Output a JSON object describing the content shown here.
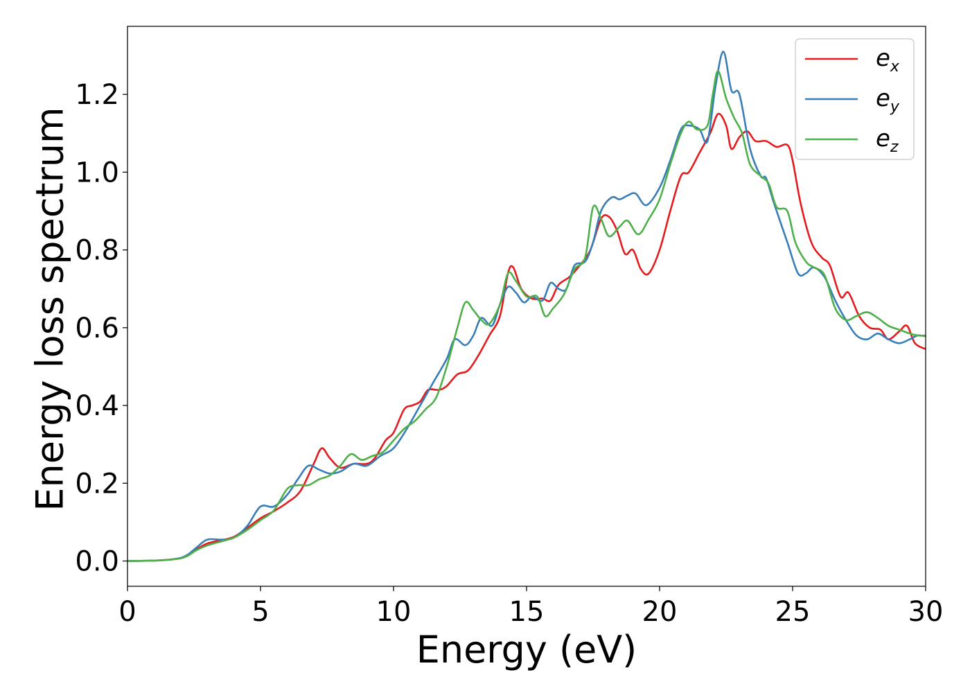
{
  "chart_data": {
    "type": "line",
    "xlabel": "Energy (eV)",
    "ylabel": "Energy loss spectrum",
    "xlim": [
      0,
      30
    ],
    "ylim": [
      -0.065,
      1.375
    ],
    "xticks": [
      0,
      5,
      10,
      15,
      20,
      25,
      30
    ],
    "yticks": [
      0.0,
      0.2,
      0.4,
      0.6,
      0.8,
      1.0,
      1.2
    ],
    "xtick_labels": [
      "0",
      "5",
      "10",
      "15",
      "20",
      "25",
      "30"
    ],
    "ytick_labels": [
      "0.0",
      "0.2",
      "0.4",
      "0.6",
      "0.8",
      "1.0",
      "1.2"
    ],
    "grid": false,
    "legend_position": "top-right",
    "series": [
      {
        "name": "e_x",
        "legend_base": "e",
        "legend_sub": "x",
        "color": "#e41a1c",
        "points": [
          [
            0,
            0.0
          ],
          [
            1,
            0.001
          ],
          [
            1.5,
            0.003
          ],
          [
            2,
            0.007
          ],
          [
            2.3,
            0.015
          ],
          [
            2.6,
            0.03
          ],
          [
            3,
            0.045
          ],
          [
            3.5,
            0.053
          ],
          [
            4,
            0.062
          ],
          [
            4.5,
            0.085
          ],
          [
            5,
            0.11
          ],
          [
            5.5,
            0.128
          ],
          [
            6,
            0.15
          ],
          [
            6.5,
            0.18
          ],
          [
            7,
            0.25
          ],
          [
            7.3,
            0.29
          ],
          [
            7.6,
            0.265
          ],
          [
            8,
            0.24
          ],
          [
            8.5,
            0.25
          ],
          [
            9,
            0.25
          ],
          [
            9.3,
            0.265
          ],
          [
            9.7,
            0.31
          ],
          [
            10,
            0.33
          ],
          [
            10.4,
            0.39
          ],
          [
            10.7,
            0.4
          ],
          [
            11,
            0.41
          ],
          [
            11.3,
            0.44
          ],
          [
            11.7,
            0.44
          ],
          [
            12,
            0.45
          ],
          [
            12.4,
            0.48
          ],
          [
            12.8,
            0.49
          ],
          [
            13.2,
            0.53
          ],
          [
            13.6,
            0.58
          ],
          [
            14,
            0.63
          ],
          [
            14.3,
            0.74
          ],
          [
            14.5,
            0.755
          ],
          [
            14.8,
            0.7
          ],
          [
            15.2,
            0.675
          ],
          [
            15.6,
            0.675
          ],
          [
            15.9,
            0.67
          ],
          [
            16.2,
            0.71
          ],
          [
            16.6,
            0.73
          ],
          [
            17,
            0.76
          ],
          [
            17.4,
            0.8
          ],
          [
            17.8,
            0.88
          ],
          [
            18.1,
            0.885
          ],
          [
            18.4,
            0.85
          ],
          [
            18.7,
            0.79
          ],
          [
            19,
            0.8
          ],
          [
            19.3,
            0.75
          ],
          [
            19.6,
            0.74
          ],
          [
            20,
            0.8
          ],
          [
            20.4,
            0.9
          ],
          [
            20.8,
            0.99
          ],
          [
            21.1,
            1.0
          ],
          [
            21.5,
            1.05
          ],
          [
            21.9,
            1.1
          ],
          [
            22.2,
            1.15
          ],
          [
            22.5,
            1.12
          ],
          [
            22.7,
            1.06
          ],
          [
            23,
            1.09
          ],
          [
            23.3,
            1.105
          ],
          [
            23.6,
            1.08
          ],
          [
            24,
            1.08
          ],
          [
            24.4,
            1.065
          ],
          [
            24.8,
            1.07
          ],
          [
            25,
            1.03
          ],
          [
            25.3,
            0.92
          ],
          [
            25.7,
            0.82
          ],
          [
            26.1,
            0.78
          ],
          [
            26.4,
            0.76
          ],
          [
            26.8,
            0.68
          ],
          [
            27.1,
            0.69
          ],
          [
            27.5,
            0.63
          ],
          [
            27.9,
            0.6
          ],
          [
            28.3,
            0.595
          ],
          [
            28.6,
            0.57
          ],
          [
            29,
            0.59
          ],
          [
            29.3,
            0.605
          ],
          [
            29.6,
            0.56
          ],
          [
            30,
            0.545
          ]
        ]
      },
      {
        "name": "e_y",
        "legend_base": "e",
        "legend_sub": "y",
        "color": "#377eb8",
        "points": [
          [
            0,
            0.0
          ],
          [
            1,
            0.001
          ],
          [
            1.5,
            0.003
          ],
          [
            2,
            0.008
          ],
          [
            2.3,
            0.018
          ],
          [
            2.6,
            0.035
          ],
          [
            3,
            0.055
          ],
          [
            3.5,
            0.055
          ],
          [
            4,
            0.06
          ],
          [
            4.5,
            0.09
          ],
          [
            5,
            0.14
          ],
          [
            5.5,
            0.14
          ],
          [
            6,
            0.17
          ],
          [
            6.4,
            0.21
          ],
          [
            6.8,
            0.245
          ],
          [
            7.2,
            0.235
          ],
          [
            7.6,
            0.225
          ],
          [
            8,
            0.23
          ],
          [
            8.5,
            0.25
          ],
          [
            9,
            0.245
          ],
          [
            9.5,
            0.27
          ],
          [
            10,
            0.29
          ],
          [
            10.5,
            0.34
          ],
          [
            11,
            0.4
          ],
          [
            11.5,
            0.46
          ],
          [
            12,
            0.52
          ],
          [
            12.3,
            0.57
          ],
          [
            12.7,
            0.555
          ],
          [
            13,
            0.58
          ],
          [
            13.3,
            0.625
          ],
          [
            13.7,
            0.605
          ],
          [
            14,
            0.66
          ],
          [
            14.3,
            0.705
          ],
          [
            14.6,
            0.69
          ],
          [
            14.9,
            0.665
          ],
          [
            15.2,
            0.68
          ],
          [
            15.6,
            0.67
          ],
          [
            15.9,
            0.715
          ],
          [
            16.2,
            0.7
          ],
          [
            16.5,
            0.7
          ],
          [
            16.8,
            0.76
          ],
          [
            17.2,
            0.77
          ],
          [
            17.5,
            0.82
          ],
          [
            17.8,
            0.9
          ],
          [
            18.2,
            0.935
          ],
          [
            18.5,
            0.93
          ],
          [
            18.8,
            0.94
          ],
          [
            19.1,
            0.945
          ],
          [
            19.5,
            0.915
          ],
          [
            20,
            0.96
          ],
          [
            20.4,
            1.03
          ],
          [
            20.8,
            1.11
          ],
          [
            21.1,
            1.12
          ],
          [
            21.5,
            1.11
          ],
          [
            21.8,
            1.08
          ],
          [
            22.1,
            1.22
          ],
          [
            22.4,
            1.31
          ],
          [
            22.7,
            1.21
          ],
          [
            23,
            1.2
          ],
          [
            23.4,
            1.06
          ],
          [
            23.8,
            0.99
          ],
          [
            24,
            0.985
          ],
          [
            24.3,
            0.92
          ],
          [
            24.8,
            0.82
          ],
          [
            25.2,
            0.74
          ],
          [
            25.5,
            0.74
          ],
          [
            25.8,
            0.755
          ],
          [
            26.2,
            0.73
          ],
          [
            26.6,
            0.67
          ],
          [
            27,
            0.62
          ],
          [
            27.4,
            0.58
          ],
          [
            27.8,
            0.57
          ],
          [
            28.2,
            0.585
          ],
          [
            28.6,
            0.57
          ],
          [
            29,
            0.56
          ],
          [
            29.4,
            0.57
          ],
          [
            29.7,
            0.58
          ],
          [
            30,
            0.578
          ]
        ]
      },
      {
        "name": "e_z",
        "legend_base": "e",
        "legend_sub": "z",
        "color": "#4daf4a",
        "points": [
          [
            0,
            0.0
          ],
          [
            1,
            0.001
          ],
          [
            1.5,
            0.003
          ],
          [
            2,
            0.007
          ],
          [
            2.3,
            0.015
          ],
          [
            2.6,
            0.028
          ],
          [
            3,
            0.04
          ],
          [
            3.5,
            0.05
          ],
          [
            4,
            0.06
          ],
          [
            4.5,
            0.08
          ],
          [
            5,
            0.105
          ],
          [
            5.5,
            0.13
          ],
          [
            6,
            0.185
          ],
          [
            6.4,
            0.195
          ],
          [
            6.8,
            0.195
          ],
          [
            7.2,
            0.21
          ],
          [
            7.6,
            0.22
          ],
          [
            8,
            0.245
          ],
          [
            8.4,
            0.275
          ],
          [
            8.8,
            0.26
          ],
          [
            9.2,
            0.27
          ],
          [
            9.6,
            0.28
          ],
          [
            10,
            0.31
          ],
          [
            10.4,
            0.34
          ],
          [
            10.8,
            0.36
          ],
          [
            11.2,
            0.39
          ],
          [
            11.6,
            0.42
          ],
          [
            12,
            0.5
          ],
          [
            12.4,
            0.6
          ],
          [
            12.7,
            0.665
          ],
          [
            13,
            0.645
          ],
          [
            13.3,
            0.62
          ],
          [
            13.6,
            0.61
          ],
          [
            14,
            0.66
          ],
          [
            14.3,
            0.74
          ],
          [
            14.6,
            0.72
          ],
          [
            15,
            0.68
          ],
          [
            15.4,
            0.68
          ],
          [
            15.7,
            0.63
          ],
          [
            16,
            0.65
          ],
          [
            16.4,
            0.685
          ],
          [
            16.8,
            0.75
          ],
          [
            17.2,
            0.78
          ],
          [
            17.5,
            0.91
          ],
          [
            17.8,
            0.88
          ],
          [
            18.1,
            0.835
          ],
          [
            18.5,
            0.86
          ],
          [
            18.8,
            0.875
          ],
          [
            19.2,
            0.84
          ],
          [
            19.6,
            0.88
          ],
          [
            20,
            0.93
          ],
          [
            20.4,
            1.02
          ],
          [
            20.8,
            1.1
          ],
          [
            21.1,
            1.13
          ],
          [
            21.4,
            1.11
          ],
          [
            21.8,
            1.12
          ],
          [
            22,
            1.2
          ],
          [
            22.2,
            1.26
          ],
          [
            22.5,
            1.19
          ],
          [
            22.8,
            1.14
          ],
          [
            23.1,
            1.1
          ],
          [
            23.4,
            1.02
          ],
          [
            23.8,
            0.99
          ],
          [
            24.1,
            0.97
          ],
          [
            24.4,
            0.91
          ],
          [
            24.8,
            0.9
          ],
          [
            25.1,
            0.82
          ],
          [
            25.5,
            0.77
          ],
          [
            25.8,
            0.755
          ],
          [
            26.2,
            0.735
          ],
          [
            26.6,
            0.65
          ],
          [
            27,
            0.62
          ],
          [
            27.4,
            0.63
          ],
          [
            27.8,
            0.64
          ],
          [
            28.2,
            0.625
          ],
          [
            28.6,
            0.605
          ],
          [
            29,
            0.595
          ],
          [
            29.4,
            0.585
          ],
          [
            29.7,
            0.58
          ],
          [
            30,
            0.58
          ]
        ]
      }
    ]
  }
}
